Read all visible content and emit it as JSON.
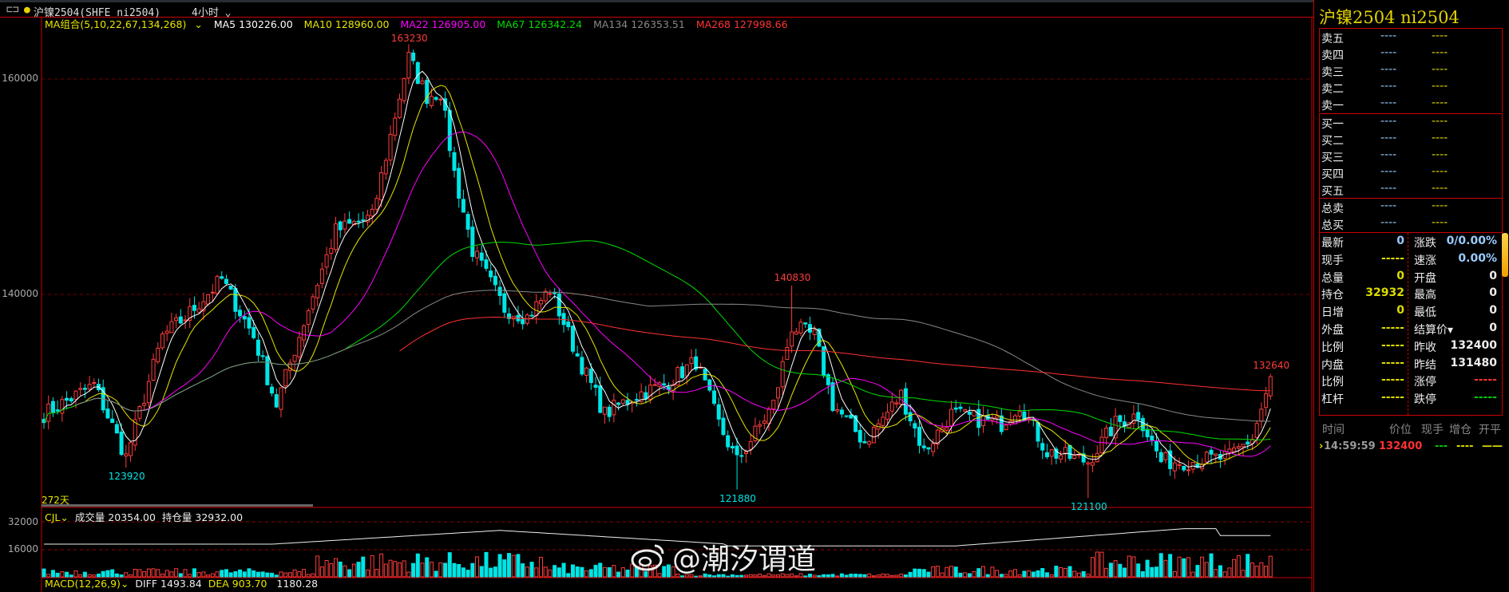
{
  "header": {
    "title": "沪镍2504(SHFE ni2504)",
    "period": "4小时"
  },
  "ma_legend": {
    "group": "MA组合(5,10,22,67,134,268)",
    "ma5": "MA5 130226.00",
    "ma10": "MA10 128960.00",
    "ma22": "MA22 126905.00",
    "ma67": "MA67 126342.24",
    "ma134": "MA134 126353.51",
    "ma268": "MA268 127998.66"
  },
  "colors": {
    "up": "#ff3c3c",
    "down": "#00e5e5",
    "ma5": "#ffffff",
    "ma10": "#e6e600",
    "ma22": "#ff00ff",
    "ma67": "#00dd00",
    "ma134": "#888888",
    "ma268": "#ff3030"
  },
  "chart_data": {
    "type": "candlestick",
    "bars": 272,
    "y_ticks": [
      140000,
      160000
    ],
    "key_closes": [
      [
        0,
        128900
      ],
      [
        11,
        131600
      ],
      [
        18,
        124900
      ],
      [
        26,
        136100
      ],
      [
        31,
        137900
      ],
      [
        39,
        141400
      ],
      [
        46,
        136100
      ],
      [
        51,
        129800
      ],
      [
        58,
        138700
      ],
      [
        64,
        145900
      ],
      [
        72,
        147200
      ],
      [
        77,
        156600
      ],
      [
        80,
        162000
      ],
      [
        84,
        158400
      ],
      [
        87,
        158800
      ],
      [
        90,
        151300
      ],
      [
        94,
        144100
      ],
      [
        101,
        138700
      ],
      [
        106,
        137900
      ],
      [
        111,
        140500
      ],
      [
        117,
        134300
      ],
      [
        123,
        128900
      ],
      [
        130,
        130700
      ],
      [
        136,
        131600
      ],
      [
        143,
        133800
      ],
      [
        148,
        128000
      ],
      [
        152,
        124500
      ],
      [
        160,
        129800
      ],
      [
        164,
        137000
      ],
      [
        169,
        136100
      ],
      [
        173,
        129800
      ],
      [
        180,
        126300
      ],
      [
        188,
        130700
      ],
      [
        193,
        125400
      ],
      [
        199,
        128900
      ],
      [
        210,
        128000
      ],
      [
        214,
        129800
      ],
      [
        220,
        125400
      ],
      [
        229,
        124500
      ],
      [
        235,
        128000
      ],
      [
        240,
        128900
      ],
      [
        245,
        124500
      ],
      [
        251,
        124500
      ],
      [
        260,
        124900
      ],
      [
        265,
        126700
      ],
      [
        269,
        132000
      ]
    ],
    "labels": [
      {
        "text": "163230",
        "bar": 80,
        "price": 163230
      },
      {
        "text": "123920",
        "bar": 18,
        "price": 123920
      },
      {
        "text": "140830",
        "bar": 164,
        "price": 140830
      },
      {
        "text": "121880",
        "bar": 152,
        "price": 121880
      },
      {
        "text": "121100",
        "bar": 229,
        "price": 121100
      },
      {
        "text": "132640",
        "bar": 269,
        "price": 132640
      }
    ],
    "bar_count_label": "272天"
  },
  "volume": {
    "name": "CJL",
    "vol": "成交量 20354.00",
    "oi": "持仓量 32932.00",
    "ticks": [
      "32000",
      "16000"
    ]
  },
  "macd": {
    "name": "MACD(12,26,9)",
    "diff": "DIFF 1493.84",
    "dea": "DEA 903.70",
    "macd": "1180.28"
  },
  "panel": {
    "title": "沪镍2504 ni2504",
    "asks": [
      {
        "l": "卖五",
        "a": "----",
        "b": "----"
      },
      {
        "l": "卖四",
        "a": "----",
        "b": "----"
      },
      {
        "l": "卖三",
        "a": "----",
        "b": "----"
      },
      {
        "l": "卖二",
        "a": "----",
        "b": "----"
      },
      {
        "l": "卖一",
        "a": "----",
        "b": "----"
      }
    ],
    "bids": [
      {
        "l": "买一",
        "a": "----",
        "b": "----"
      },
      {
        "l": "买二",
        "a": "----",
        "b": "----"
      },
      {
        "l": "买三",
        "a": "----",
        "b": "----"
      },
      {
        "l": "买四",
        "a": "----",
        "b": "----"
      },
      {
        "l": "买五",
        "a": "----",
        "b": "----"
      }
    ],
    "totals": [
      {
        "l": "总卖",
        "a": "----",
        "b": "----"
      },
      {
        "l": "总买",
        "a": "----",
        "b": "----"
      }
    ],
    "quote": [
      [
        "最新",
        "0",
        "#9cf",
        "涨跌",
        "0/0.00%",
        "#9cf"
      ],
      [
        "现手",
        "-----",
        "#dd0",
        "速涨",
        "0.00%",
        "#9cf"
      ],
      [
        "总量",
        "0",
        "#dd0",
        "开盘",
        "0",
        "#eee"
      ],
      [
        "持仓",
        "32932",
        "#dd0",
        "最高",
        "0",
        "#eee"
      ],
      [
        "日增",
        "0",
        "#dd0",
        "最低",
        "0",
        "#eee"
      ],
      [
        "外盘",
        "-----",
        "#dd0",
        "结算价▾",
        "0",
        "#eee"
      ],
      [
        "比例",
        "-----",
        "#dd0",
        "昨收",
        "132400",
        "#eee"
      ],
      [
        "内盘",
        "-----",
        "#dd0",
        "昨结",
        "131480",
        "#eee"
      ],
      [
        "比例",
        "-----",
        "#dd0",
        "涨停",
        "-----",
        "#f33"
      ],
      [
        "杠杆",
        "-----",
        "#dd0",
        "跌停",
        "-----",
        "#0c0"
      ]
    ],
    "ticks_header": [
      "时间",
      "价位",
      "现手",
      "增仓",
      "开平"
    ],
    "tick": {
      "time": "14:59:59",
      "price": "132400",
      "vol": "---",
      "oi": "----",
      "type": "——"
    }
  },
  "watermark": "@潮汐谓道"
}
